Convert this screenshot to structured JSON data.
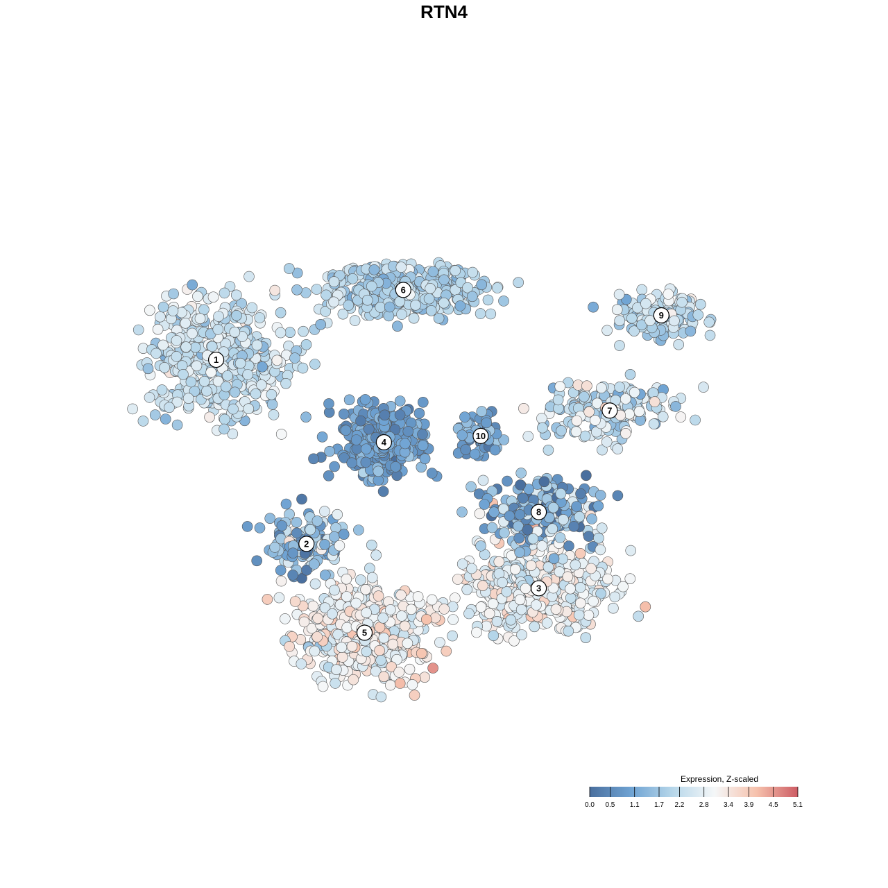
{
  "title": "RTN4",
  "chart_data": {
    "type": "scatter",
    "title": "RTN4",
    "color_scale": {
      "title": "Expression, Z-scaled",
      "min": 0.0,
      "max": 5.1,
      "ticks": [
        0.0,
        0.5,
        1.1,
        1.7,
        2.2,
        2.8,
        3.4,
        3.9,
        4.5,
        5.1
      ],
      "tick_labels": [
        "0.0",
        "0.5",
        "1.1",
        "1.7",
        "2.2",
        "2.8",
        "3.4",
        "3.9",
        "4.5",
        "5.1"
      ],
      "colors": [
        "#4a6f9e",
        "#6fa3d3",
        "#b7d7ea",
        "#f5f7f8",
        "#f6c2ad",
        "#cd5c64"
      ]
    },
    "clusters": [
      {
        "label": "1",
        "x": 0.12,
        "y": 0.63,
        "spread_x": 0.13,
        "spread_y": 0.1,
        "n": 520,
        "mean_expr": 2.3,
        "sd_expr": 0.45
      },
      {
        "label": "2",
        "x": 0.26,
        "y": 0.34,
        "spread_x": 0.07,
        "spread_y": 0.05,
        "n": 140,
        "mean_expr": 1.4,
        "sd_expr": 0.9
      },
      {
        "label": "3",
        "x": 0.62,
        "y": 0.27,
        "spread_x": 0.13,
        "spread_y": 0.08,
        "n": 420,
        "mean_expr": 2.9,
        "sd_expr": 0.45
      },
      {
        "label": "4",
        "x": 0.38,
        "y": 0.5,
        "spread_x": 0.07,
        "spread_y": 0.06,
        "n": 420,
        "mean_expr": 0.9,
        "sd_expr": 0.35
      },
      {
        "label": "5",
        "x": 0.35,
        "y": 0.2,
        "spread_x": 0.11,
        "spread_y": 0.08,
        "n": 520,
        "mean_expr": 3.1,
        "sd_expr": 0.45
      },
      {
        "label": "6",
        "x": 0.41,
        "y": 0.74,
        "spread_x": 0.14,
        "spread_y": 0.05,
        "n": 380,
        "mean_expr": 2.0,
        "sd_expr": 0.4
      },
      {
        "label": "7",
        "x": 0.73,
        "y": 0.55,
        "spread_x": 0.11,
        "spread_y": 0.05,
        "n": 200,
        "mean_expr": 2.3,
        "sd_expr": 0.6
      },
      {
        "label": "8",
        "x": 0.62,
        "y": 0.39,
        "spread_x": 0.09,
        "spread_y": 0.06,
        "n": 210,
        "mean_expr": 1.3,
        "sd_expr": 1.0
      },
      {
        "label": "9",
        "x": 0.81,
        "y": 0.7,
        "spread_x": 0.08,
        "spread_y": 0.04,
        "n": 140,
        "mean_expr": 2.1,
        "sd_expr": 0.55
      },
      {
        "label": "10",
        "x": 0.53,
        "y": 0.51,
        "spread_x": 0.04,
        "spread_y": 0.04,
        "n": 60,
        "mean_expr": 1.0,
        "sd_expr": 0.4
      }
    ],
    "xlabel": "",
    "ylabel": "",
    "grid": false,
    "legend": "bottom-right"
  }
}
